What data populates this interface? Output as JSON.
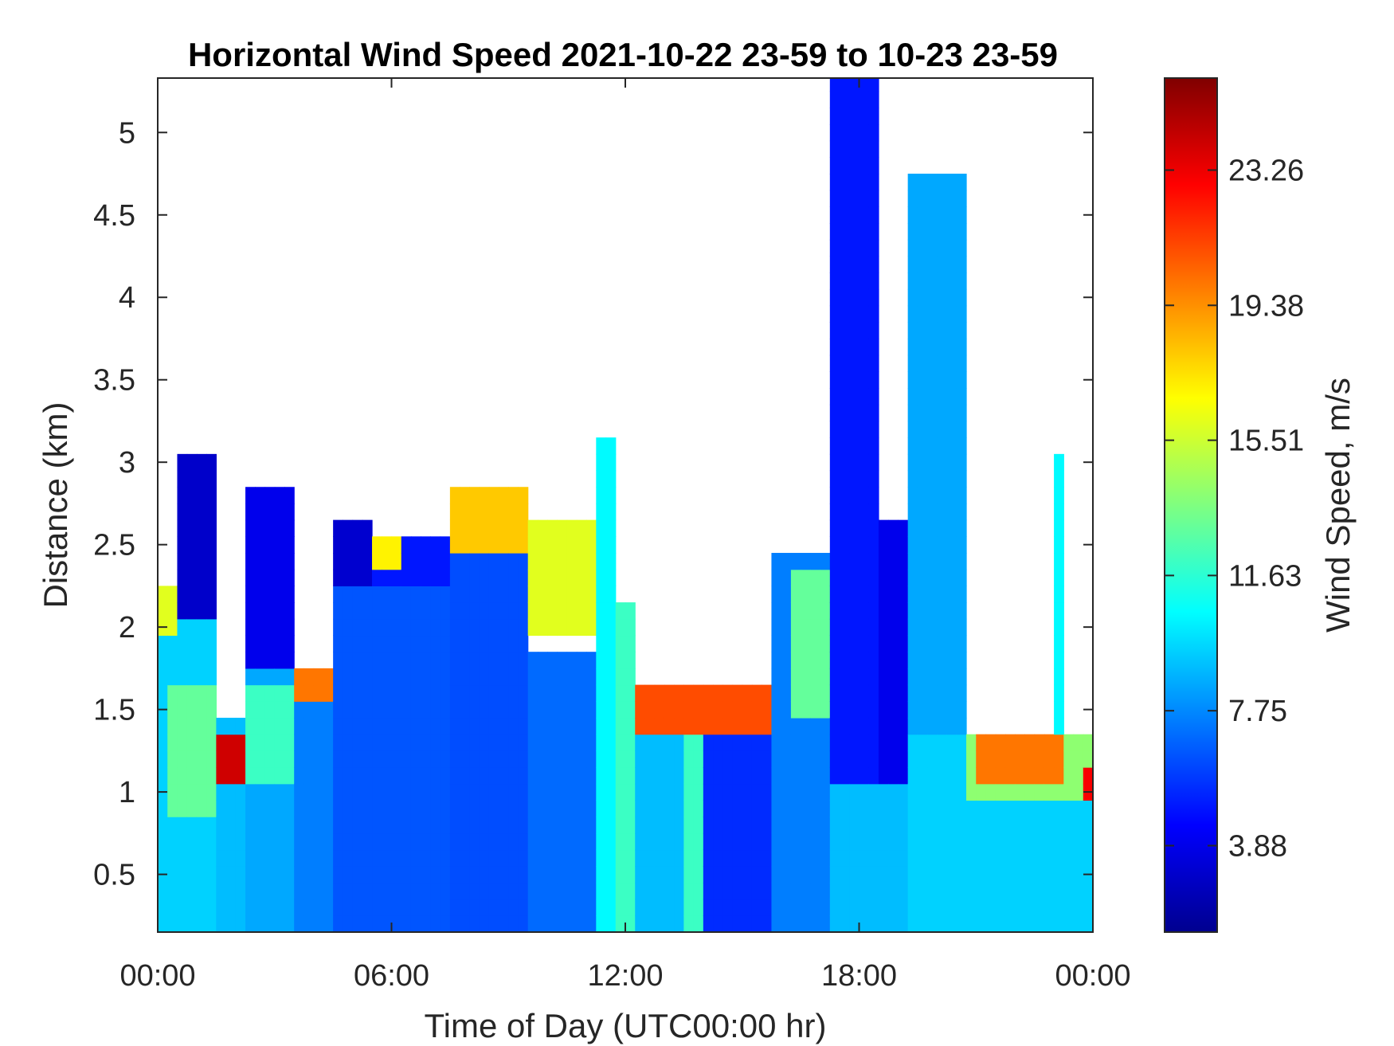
{
  "chart_data": {
    "type": "heatmap",
    "title": "Horizontal Wind Speed 2021-10-22 23-59 to 10-23 23-59",
    "xlabel": "Time of Day (UTC00:00 hr)",
    "ylabel": "Distance (km)",
    "x_ticks": [
      "00:00",
      "06:00",
      "12:00",
      "18:00",
      "00:00"
    ],
    "x_tick_hours": [
      0,
      6,
      12,
      18,
      24
    ],
    "xlim_hours": [
      0,
      24
    ],
    "y_ticks": [
      "0.5",
      "1",
      "1.5",
      "2",
      "2.5",
      "3",
      "3.5",
      "4",
      "4.5",
      "5"
    ],
    "y_tick_values": [
      0.5,
      1,
      1.5,
      2,
      2.5,
      3,
      3.5,
      4,
      4.5,
      5
    ],
    "ylim_km": [
      0.15,
      5.33
    ],
    "colorbar": {
      "label": "Wind Speed, m/s",
      "ticks": [
        "3.88",
        "7.75",
        "11.63",
        "15.51",
        "19.38",
        "23.26"
      ],
      "tick_values": [
        3.88,
        7.75,
        11.63,
        15.51,
        19.38,
        23.26
      ],
      "range": [
        1.4,
        25.9
      ],
      "colormap": "jet"
    },
    "cell_hours": 0.25,
    "cell_km": 0.1,
    "regions": [
      {
        "t": [
          0,
          1.5
        ],
        "z": [
          0.15,
          2.3
        ],
        "v": 9.5
      },
      {
        "t": [
          0.3,
          1.4
        ],
        "z": [
          0.8,
          1.7
        ],
        "v": 13
      },
      {
        "t": [
          0,
          0.6
        ],
        "z": [
          2.0,
          2.3
        ],
        "v": 16
      },
      {
        "t": [
          0.5,
          1.4
        ],
        "z": [
          2.1,
          3.05
        ],
        "v": 3.2
      },
      {
        "t": [
          1.4,
          2.3
        ],
        "z": [
          0.15,
          1.45
        ],
        "v": 9
      },
      {
        "t": [
          1.45,
          2.3
        ],
        "z": [
          1.05,
          1.3
        ],
        "v": 24
      },
      {
        "t": [
          2.3,
          3.6
        ],
        "z": [
          0.15,
          1.8
        ],
        "v": 8.5
      },
      {
        "t": [
          2.3,
          3.6
        ],
        "z": [
          1.0,
          1.7
        ],
        "v": 12
      },
      {
        "t": [
          2.3,
          3.6
        ],
        "z": [
          1.8,
          2.9
        ],
        "v": 4
      },
      {
        "t": [
          3.6,
          4.6
        ],
        "z": [
          0.15,
          1.55
        ],
        "v": 7.5
      },
      {
        "t": [
          3.6,
          4.6
        ],
        "z": [
          1.55,
          1.8
        ],
        "v": 20
      },
      {
        "t": [
          4.6,
          5.5
        ],
        "z": [
          0.15,
          2.3
        ],
        "v": 6.5
      },
      {
        "t": [
          4.6,
          5.5
        ],
        "z": [
          2.3,
          2.65
        ],
        "v": 3.3
      },
      {
        "t": [
          5.5,
          7.5
        ],
        "z": [
          0.15,
          2.4
        ],
        "v": 6.5
      },
      {
        "t": [
          5.5,
          7.5
        ],
        "z": [
          2.3,
          2.6
        ],
        "v": 5
      },
      {
        "t": [
          5.5,
          6.3
        ],
        "z": [
          2.35,
          2.6
        ],
        "v": 17
      },
      {
        "t": [
          7.5,
          9.5
        ],
        "z": [
          0.15,
          2.5
        ],
        "v": 6.3
      },
      {
        "t": [
          7.6,
          9.5
        ],
        "z": [
          2.45,
          2.85
        ],
        "v": 18
      },
      {
        "t": [
          9.5,
          11.2
        ],
        "z": [
          0.15,
          1.9
        ],
        "v": 7
      },
      {
        "t": [
          9.5,
          11.2
        ],
        "z": [
          2.0,
          2.7
        ],
        "v": 16
      },
      {
        "t": [
          11.2,
          11.8
        ],
        "z": [
          0.15,
          3.2
        ],
        "v": 10.5
      },
      {
        "t": [
          11.8,
          12.2
        ],
        "z": [
          0.15,
          2.2
        ],
        "v": 12
      },
      {
        "t": [
          12.2,
          13.5
        ],
        "z": [
          0.15,
          1.4
        ],
        "v": 9
      },
      {
        "t": [
          12.3,
          15.8
        ],
        "z": [
          1.4,
          1.7
        ],
        "v": 21
      },
      {
        "t": [
          13.5,
          14.1
        ],
        "z": [
          0.15,
          1.4
        ],
        "v": 12
      },
      {
        "t": [
          14.1,
          16.2
        ],
        "z": [
          0.15,
          1.35
        ],
        "v": 5.5
      },
      {
        "t": [
          15.8,
          17.2
        ],
        "z": [
          0.15,
          2.5
        ],
        "v": 7.5
      },
      {
        "t": [
          16.2,
          17.2
        ],
        "z": [
          1.5,
          2.4
        ],
        "v": 13
      },
      {
        "t": [
          17.2,
          19.3
        ],
        "z": [
          0.15,
          1.0
        ],
        "v": 9
      },
      {
        "t": [
          17.3,
          18.6
        ],
        "z": [
          1.0,
          5.3
        ],
        "v": 5
      },
      {
        "t": [
          18.6,
          19.3
        ],
        "z": [
          1.0,
          2.7
        ],
        "v": 4
      },
      {
        "t": [
          19.3,
          20.7
        ],
        "z": [
          0.15,
          1.4
        ],
        "v": 9.5
      },
      {
        "t": [
          19.3,
          20.7
        ],
        "z": [
          1.4,
          4.7
        ],
        "v": 8.5
      },
      {
        "t": [
          20.7,
          24
        ],
        "z": [
          0.15,
          0.95
        ],
        "v": 9.5
      },
      {
        "t": [
          20.7,
          24
        ],
        "z": [
          0.95,
          1.35
        ],
        "v": 14
      },
      {
        "t": [
          20.9,
          23.3
        ],
        "z": [
          1.05,
          1.35
        ],
        "v": 20
      },
      {
        "t": [
          23.7,
          24
        ],
        "z": [
          0.9,
          1.1
        ],
        "v": 23
      },
      {
        "t": [
          22.9,
          23.2
        ],
        "z": [
          1.4,
          3.1
        ],
        "v": 10.5
      }
    ]
  }
}
